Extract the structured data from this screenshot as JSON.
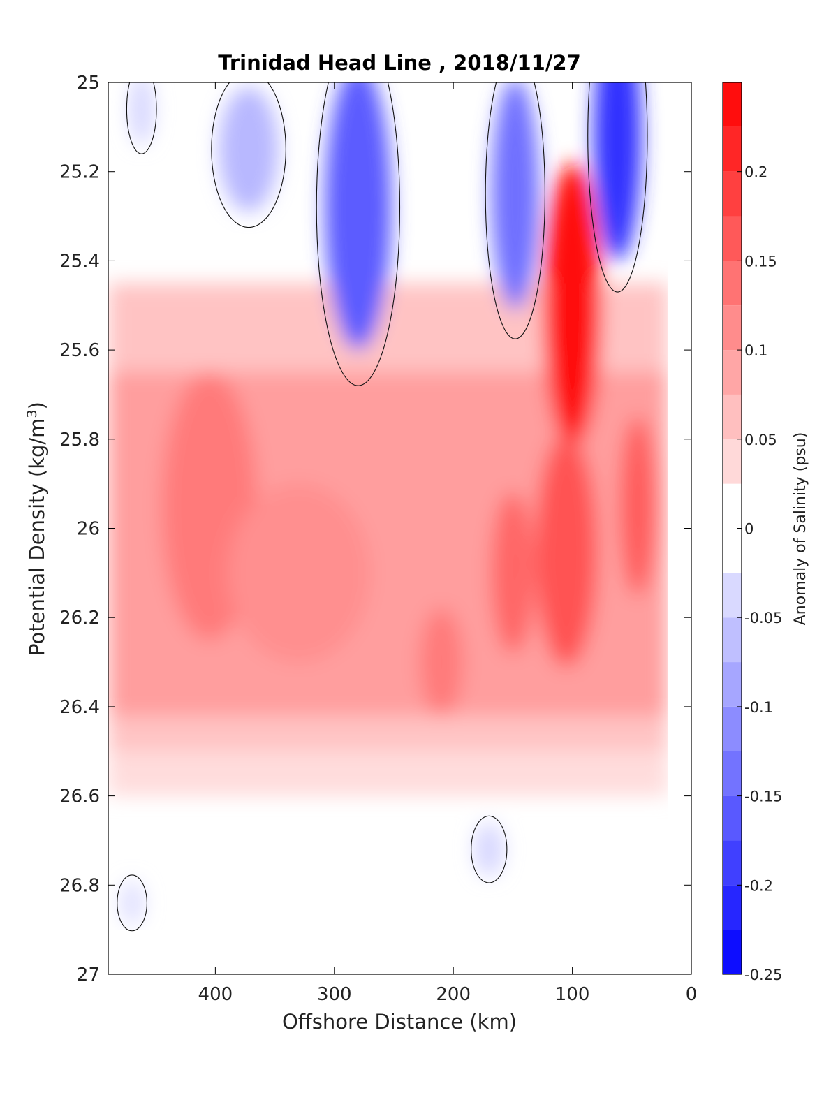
{
  "chart_data": {
    "type": "heatmap",
    "title": "Trinidad Head Line , 2018/11/27",
    "xlabel": "Offshore Distance (km)",
    "ylabel_main": "Potential Density (kg/m",
    "ylabel_sup": "3",
    "ylabel_close": ")",
    "colorbar_label": "Anomaly of Salinity (psu)",
    "x_range": [
      490,
      0
    ],
    "x_reversed": true,
    "y_range": [
      25,
      27
    ],
    "y_reversed": true,
    "x_ticks": [
      400,
      300,
      200,
      100,
      0
    ],
    "x_tick_labels": [
      "400",
      "300",
      "200",
      "100",
      "0"
    ],
    "y_ticks": [
      25,
      25.2,
      25.4,
      25.6,
      25.8,
      26,
      26.2,
      26.4,
      26.6,
      26.8,
      27
    ],
    "y_tick_labels": [
      "25",
      "25.2",
      "25.4",
      "25.6",
      "25.8",
      "26",
      "26.2",
      "26.4",
      "26.6",
      "26.8",
      "27"
    ],
    "colorbar_range": [
      -0.25,
      0.25
    ],
    "colorbar_ticks": [
      0.2,
      0.15,
      0.1,
      0.05,
      0,
      -0.05,
      -0.1,
      -0.15,
      -0.2,
      -0.25
    ],
    "colorbar_tick_labels": [
      "0.2",
      "0.15",
      "0.1",
      "0.05",
      "0",
      "-0.05",
      "-0.1",
      "-0.15",
      "-0.2",
      "-0.25"
    ],
    "contour_levels": [
      -0.25,
      -0.225,
      -0.2,
      -0.175,
      -0.15,
      -0.125,
      -0.1,
      -0.075,
      -0.05,
      -0.025,
      0.025,
      0.05,
      0.075,
      0.1,
      0.125,
      0.15,
      0.175,
      0.2,
      0.225,
      0.25
    ],
    "colormap_endpoints": {
      "negative": "#0000ff",
      "zero": "#ffffff",
      "positive": "#ff0000"
    },
    "data_x_extent": [
      20,
      490
    ],
    "data_y_extent": [
      25,
      26.9
    ],
    "zero_contour": true,
    "anomaly_features": [
      {
        "x": 280,
        "y": 25.28,
        "value": -0.16
      },
      {
        "x": 148,
        "y": 25.25,
        "value": -0.14
      },
      {
        "x": 62,
        "y": 25.12,
        "value": -0.2
      },
      {
        "x": 372,
        "y": 25.15,
        "value": -0.07
      },
      {
        "x": 462,
        "y": 25.06,
        "value": -0.04
      },
      {
        "x": 100,
        "y": 25.5,
        "value": 0.24
      },
      {
        "x": 105,
        "y": 26.05,
        "value": 0.17
      },
      {
        "x": 150,
        "y": 26.1,
        "value": 0.15
      },
      {
        "x": 45,
        "y": 25.95,
        "value": 0.16
      },
      {
        "x": 210,
        "y": 26.3,
        "value": 0.13
      },
      {
        "x": 405,
        "y": 25.95,
        "value": 0.13
      },
      {
        "x": 330,
        "y": 26.1,
        "value": 0.11
      },
      {
        "x": 170,
        "y": 26.72,
        "value": -0.04
      },
      {
        "x": 470,
        "y": 26.84,
        "value": -0.03
      }
    ]
  }
}
